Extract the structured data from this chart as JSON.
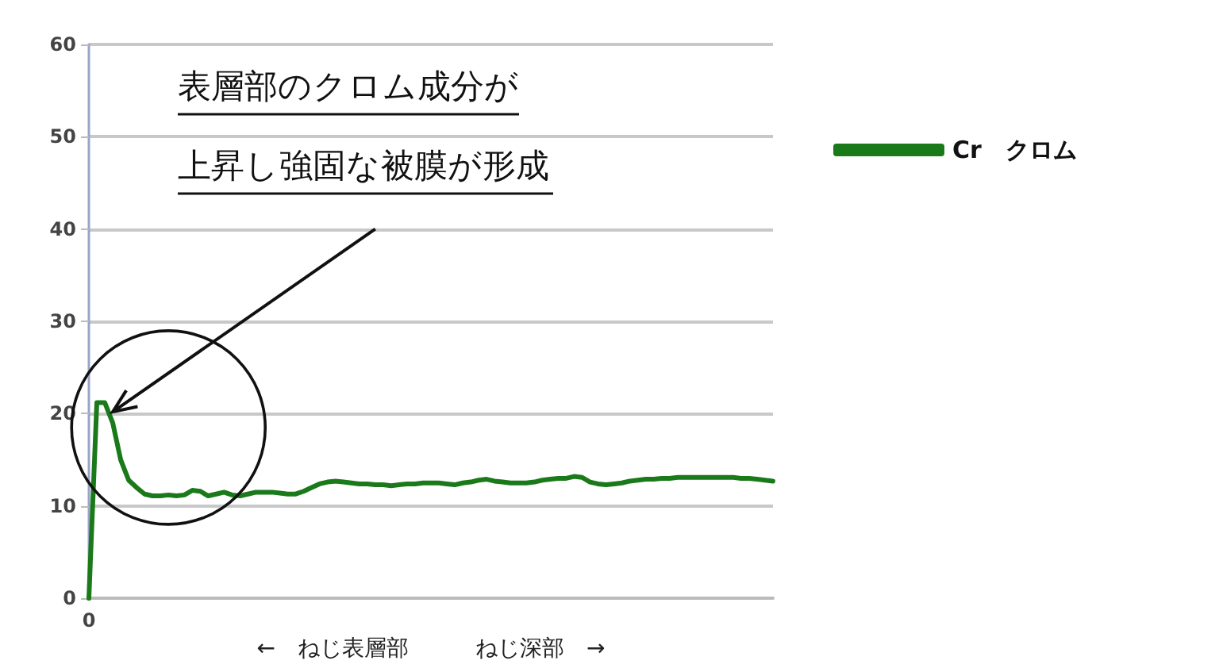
{
  "chart_data": {
    "type": "line",
    "xlabel": "←　ねじ表層部　　　ねじ深部　→",
    "annotations": [
      "表層部のクロム成分が",
      "上昇し強固な被膜が形成"
    ],
    "categories": [
      "0",
      null,
      null,
      null,
      null,
      null,
      null,
      null,
      null,
      null,
      null,
      null,
      null,
      null,
      null,
      null,
      null,
      null,
      null,
      null,
      null,
      null,
      null,
      null,
      null,
      null,
      null,
      null,
      null,
      null,
      null,
      null,
      null,
      null,
      null,
      null,
      null,
      null,
      null,
      null,
      null,
      null,
      null,
      null,
      null,
      null,
      null,
      null,
      null,
      null,
      null,
      null,
      null,
      null,
      null,
      null,
      null,
      null,
      null,
      null,
      null,
      null,
      null,
      null,
      null,
      null,
      null,
      null,
      null,
      null,
      null,
      null,
      null,
      null,
      null,
      null,
      null,
      null,
      null,
      null,
      null,
      null,
      null,
      null,
      null,
      null,
      null
    ],
    "series": [
      {
        "name": "Cr　クロム",
        "color": "#1a7a1a",
        "values": [
          0,
          21.2,
          21.2,
          19,
          15,
          12.8,
          12,
          11.3,
          11.1,
          11.1,
          11.2,
          11.1,
          11.2,
          11.7,
          11.6,
          11.1,
          11.3,
          11.5,
          11.2,
          11.1,
          11.3,
          11.5,
          11.5,
          11.5,
          11.4,
          11.3,
          11.3,
          11.6,
          12,
          12.4,
          12.6,
          12.7,
          12.6,
          12.5,
          12.4,
          12.4,
          12.3,
          12.3,
          12.2,
          12.3,
          12.4,
          12.4,
          12.5,
          12.5,
          12.5,
          12.4,
          12.3,
          12.5,
          12.6,
          12.8,
          12.9,
          12.7,
          12.6,
          12.5,
          12.5,
          12.5,
          12.6,
          12.8,
          12.9,
          13,
          13,
          13.2,
          13.1,
          12.6,
          12.4,
          12.3,
          12.4,
          12.5,
          12.7,
          12.8,
          12.9,
          12.9,
          13,
          13,
          13.1,
          13.1,
          13.1,
          13.1,
          13.1,
          13.1,
          13.1,
          13.1,
          13,
          13,
          12.9,
          12.8,
          12.7
        ]
      }
    ],
    "ylim": [
      0,
      60
    ],
    "yticks": [
      0,
      10,
      20,
      30,
      40,
      50,
      60
    ],
    "grid": "y",
    "legend": "right",
    "marker": "none",
    "line_style": "solid"
  }
}
